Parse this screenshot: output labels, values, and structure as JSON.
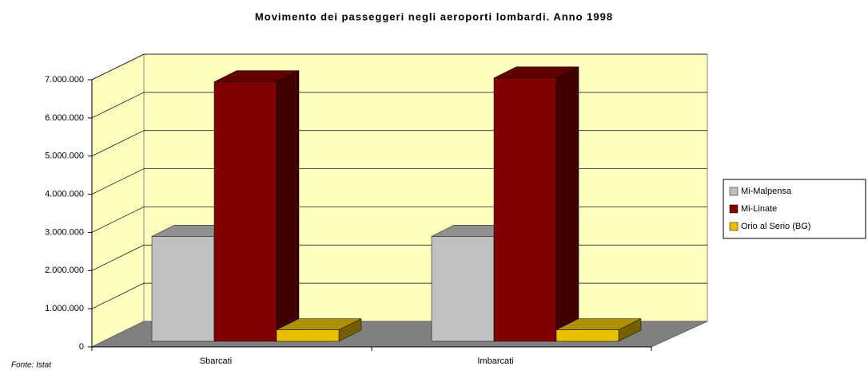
{
  "chart_data": {
    "type": "bar3d",
    "title": "Movimento dei passeggeri negli aeroporti lombardi. Anno 1998",
    "source": "Fonte: Istat",
    "categories": [
      "Sbarcati",
      "Imbarcati"
    ],
    "series": [
      {
        "name": "Mi-Malpensa",
        "color": "#c0c0c0",
        "values": [
          2750000,
          2750000
        ]
      },
      {
        "name": "Mi-Linate",
        "color": "#800000",
        "values": [
          6800000,
          6900000
        ]
      },
      {
        "name": "Orio al Serio (BG)",
        "color": "#e8c000",
        "values": [
          300000,
          300000
        ]
      }
    ],
    "ylim": [
      0,
      7000000
    ],
    "yticks": [
      {
        "value": 0,
        "label": "0"
      },
      {
        "value": 1000000,
        "label": "1.000.000"
      },
      {
        "value": 2000000,
        "label": "2.000.000"
      },
      {
        "value": 3000000,
        "label": "3.000.000"
      },
      {
        "value": 4000000,
        "label": "4.000.000"
      },
      {
        "value": 5000000,
        "label": "5.000.000"
      },
      {
        "value": 6000000,
        "label": "6.000.000"
      },
      {
        "value": 7000000,
        "label": "7.000.000"
      }
    ],
    "grid": true
  }
}
